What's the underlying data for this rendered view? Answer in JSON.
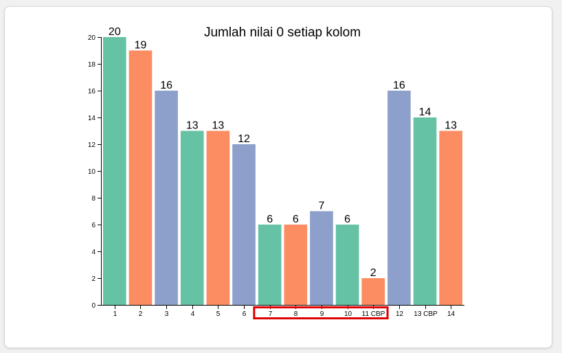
{
  "chart_data": {
    "type": "bar",
    "title": "Jumlah nilai 0 setiap kolom",
    "xlabel": "",
    "ylabel": "",
    "categories": [
      "1",
      "2",
      "3",
      "4",
      "5",
      "6",
      "7",
      "8",
      "9",
      "10",
      "11 CBP",
      "12",
      "13 CBP",
      "14"
    ],
    "values": [
      20,
      19,
      16,
      13,
      13,
      12,
      6,
      6,
      7,
      6,
      2,
      16,
      14,
      13
    ],
    "colors": [
      "#66c2a5",
      "#fc8d62",
      "#8da0cb",
      "#66c2a5",
      "#fc8d62",
      "#8da0cb",
      "#66c2a5",
      "#fc8d62",
      "#8da0cb",
      "#66c2a5",
      "#fc8d62",
      "#8da0cb",
      "#66c2a5",
      "#fc8d62"
    ],
    "ylim": [
      0,
      20
    ],
    "yticks": [
      0,
      2,
      4,
      6,
      8,
      10,
      12,
      14,
      16,
      18,
      20
    ],
    "highlight": {
      "categories": [
        "7",
        "8",
        "9",
        "10",
        "11 CBP"
      ],
      "color": "#e00000"
    }
  }
}
